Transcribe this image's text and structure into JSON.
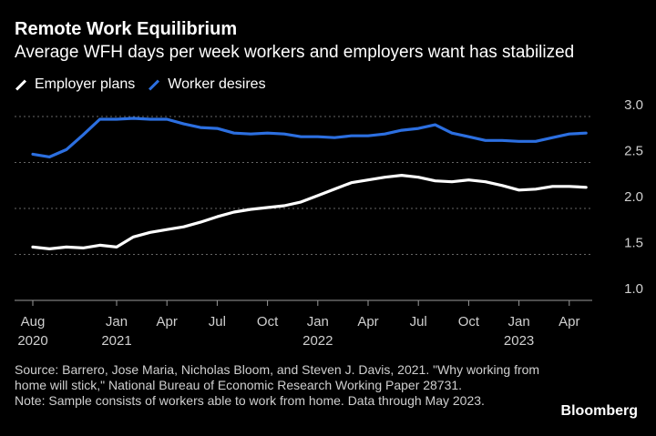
{
  "title": "Remote Work Equilibrium",
  "subtitle": "Average WFH days per week workers and employers want has stabilized",
  "legend": {
    "employer": "Employer plans",
    "worker": "Worker desires"
  },
  "source": {
    "line1": "Source: Barrero, Jose Maria, Nicholas Bloom, and Steven J. Davis, 2021. \"Why working from home will stick,\" National Bureau of Economic Research Working Paper 28731.",
    "line2": "Note: Sample consists of workers able to work from home. Data through May 2023."
  },
  "brand": "Bloomberg",
  "colors": {
    "employer": "#ffffff",
    "worker": "#2c6fe0",
    "grid": "#666666",
    "axis": "#cfcfcf"
  },
  "chart_data": {
    "type": "line",
    "x": [
      "2020-08",
      "2020-09",
      "2020-10",
      "2020-11",
      "2020-12",
      "2021-01",
      "2021-02",
      "2021-03",
      "2021-04",
      "2021-05",
      "2021-06",
      "2021-07",
      "2021-08",
      "2021-09",
      "2021-10",
      "2021-11",
      "2021-12",
      "2022-01",
      "2022-02",
      "2022-03",
      "2022-04",
      "2022-05",
      "2022-06",
      "2022-07",
      "2022-08",
      "2022-09",
      "2022-10",
      "2022-11",
      "2022-12",
      "2023-01",
      "2023-02",
      "2023-03",
      "2023-04",
      "2023-05"
    ],
    "series": [
      {
        "name": "Worker desires",
        "color": "#2c6fe0",
        "values": [
          2.59,
          2.56,
          2.64,
          2.8,
          2.97,
          2.97,
          2.98,
          2.97,
          2.97,
          2.92,
          2.88,
          2.87,
          2.82,
          2.81,
          2.82,
          2.81,
          2.78,
          2.78,
          2.77,
          2.79,
          2.79,
          2.81,
          2.85,
          2.87,
          2.91,
          2.82,
          2.78,
          2.74,
          2.74,
          2.73,
          2.73,
          2.77,
          2.81,
          2.82
        ]
      },
      {
        "name": "Employer plans",
        "color": "#ffffff",
        "values": [
          1.58,
          1.56,
          1.58,
          1.57,
          1.6,
          1.58,
          1.69,
          1.74,
          1.77,
          1.8,
          1.85,
          1.91,
          1.96,
          1.99,
          2.01,
          2.03,
          2.07,
          2.14,
          2.21,
          2.28,
          2.31,
          2.34,
          2.36,
          2.34,
          2.3,
          2.29,
          2.31,
          2.29,
          2.25,
          2.2,
          2.21,
          2.24,
          2.24,
          2.23
        ]
      }
    ],
    "xticks": [
      {
        "at": "2020-08",
        "label": "Aug",
        "year": "2020"
      },
      {
        "at": "2021-01",
        "label": "Jan",
        "year": "2021"
      },
      {
        "at": "2021-04",
        "label": "Apr",
        "year": ""
      },
      {
        "at": "2021-07",
        "label": "Jul",
        "year": ""
      },
      {
        "at": "2021-10",
        "label": "Oct",
        "year": ""
      },
      {
        "at": "2022-01",
        "label": "Jan",
        "year": "2022"
      },
      {
        "at": "2022-04",
        "label": "Apr",
        "year": ""
      },
      {
        "at": "2022-07",
        "label": "Jul",
        "year": ""
      },
      {
        "at": "2022-10",
        "label": "Oct",
        "year": ""
      },
      {
        "at": "2023-01",
        "label": "Jan",
        "year": "2023"
      },
      {
        "at": "2023-04",
        "label": "Apr",
        "year": ""
      }
    ],
    "yticks": [
      "3.0",
      "2.5",
      "2.0",
      "1.5",
      "1.0"
    ],
    "ylim": [
      1.0,
      3.0
    ],
    "grid": true,
    "legend_position": "top-left"
  }
}
